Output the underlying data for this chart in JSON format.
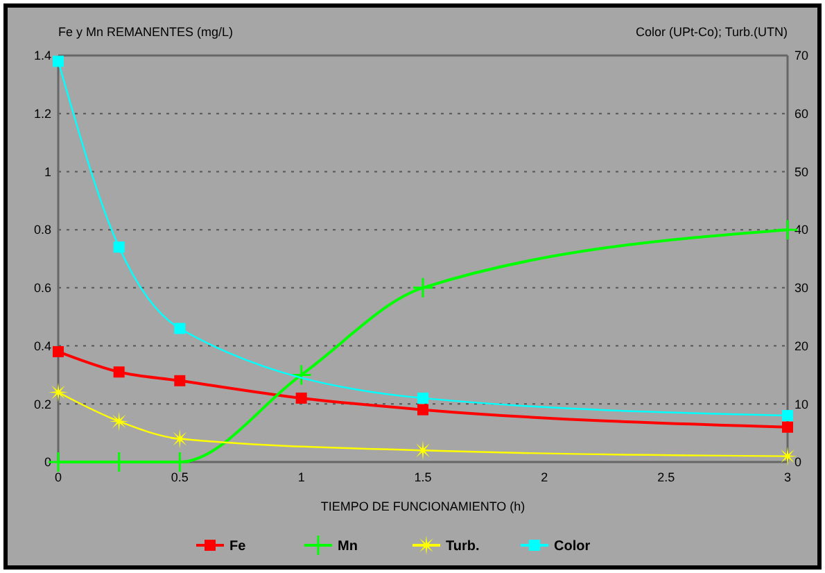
{
  "chart_data": {
    "type": "line",
    "ylabel": "Fe y Mn REMANENTES (mg/L)",
    "y2label": "Color (UPt-Co); Turb.(UTN)",
    "xlabel": "TIEMPO DE FUNCIONAMIENTO (h)",
    "x": [
      0,
      0.25,
      0.5,
      1,
      1.5,
      3
    ],
    "xlim": [
      0,
      3
    ],
    "xticks": [
      0,
      0.5,
      1,
      1.5,
      2,
      2.5,
      3
    ],
    "ylim": [
      0,
      1.4
    ],
    "yticks": [
      0,
      0.2,
      0.4,
      0.6,
      0.8,
      1,
      1.2,
      1.4
    ],
    "y2lim": [
      0,
      70
    ],
    "y2ticks": [
      0,
      10,
      20,
      30,
      40,
      50,
      60,
      70
    ],
    "grid": "y",
    "legend": "bottom",
    "series": [
      {
        "name": "Fe",
        "color": "#ff0000",
        "marker": "square",
        "values": [
          0.38,
          0.31,
          0.28,
          0.22,
          0.18,
          0.12
        ]
      },
      {
        "name": "Mn",
        "color": "#00ff00",
        "marker": "cross",
        "values": [
          0,
          0,
          0,
          0.3,
          0.6,
          0.8
        ]
      },
      {
        "name": "Turb.",
        "color": "#ffff00",
        "marker": "star",
        "axis": "y2",
        "x": [
          0,
          0.25,
          0.5,
          1.5,
          3
        ],
        "values": [
          12,
          7,
          4,
          2,
          1
        ]
      },
      {
        "name": "Color",
        "color": "#00ffff",
        "marker": "square",
        "axis": "y2",
        "x": [
          0,
          0.25,
          0.5,
          1.5,
          3
        ],
        "values": [
          69,
          37,
          23,
          11,
          8
        ]
      }
    ]
  }
}
